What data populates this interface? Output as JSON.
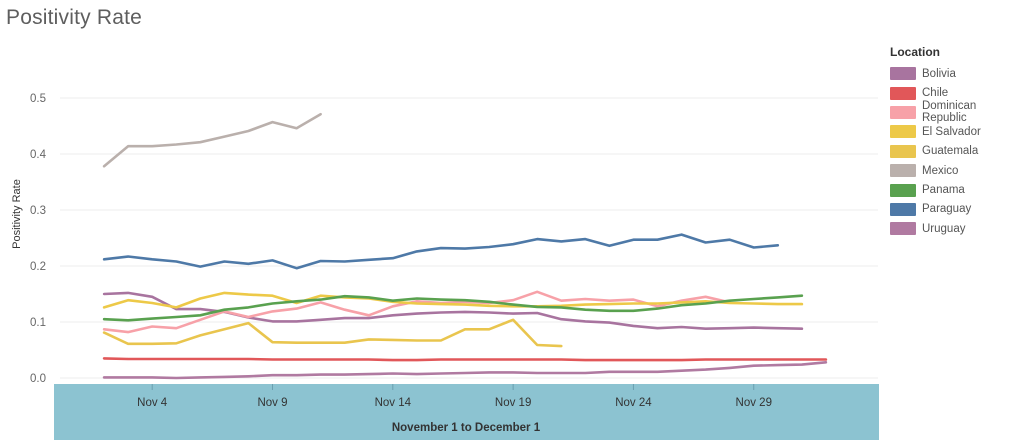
{
  "title": "Positivity Rate",
  "chart_data": {
    "type": "line",
    "ylabel": "Positivity Rate",
    "xlabel": "November 1 to December 1",
    "ylim": [
      0,
      0.5
    ],
    "yticks": [
      "0.0",
      "0.1",
      "0.2",
      "0.3",
      "0.4",
      "0.5"
    ],
    "xlim": [
      1,
      33
    ],
    "xticks": [
      {
        "label": "Nov 4",
        "day": 4
      },
      {
        "label": "Nov 9",
        "day": 9
      },
      {
        "label": "Nov 14",
        "day": 14
      },
      {
        "label": "Nov 19",
        "day": 19
      },
      {
        "label": "Nov 24",
        "day": 24
      },
      {
        "label": "Nov 29",
        "day": 29
      }
    ],
    "grid": true,
    "legend_title": "Location",
    "legend_position": "right",
    "series": [
      {
        "name": "Bolivia",
        "color": "#a8749f",
        "x": [
          2,
          3,
          4,
          5,
          6,
          7,
          8,
          9,
          10,
          11,
          12,
          13,
          14,
          15,
          16,
          17,
          18,
          19,
          20,
          21,
          22,
          23,
          24,
          25,
          26,
          27,
          28,
          29,
          30,
          31
        ],
        "values": [
          0.15,
          0.152,
          0.145,
          0.123,
          0.123,
          0.118,
          0.108,
          0.101,
          0.101,
          0.104,
          0.107,
          0.107,
          0.112,
          0.115,
          0.117,
          0.118,
          0.117,
          0.115,
          0.116,
          0.105,
          0.101,
          0.099,
          0.093,
          0.089,
          0.091,
          0.088,
          0.089,
          0.09,
          0.089,
          0.088
        ]
      },
      {
        "name": "Chile",
        "color": "#e15759",
        "x": [
          2,
          3,
          4,
          5,
          6,
          7,
          8,
          9,
          10,
          11,
          12,
          13,
          14,
          15,
          16,
          17,
          18,
          19,
          20,
          21,
          22,
          23,
          24,
          25,
          26,
          27,
          28,
          29,
          30,
          31,
          32
        ],
        "values": [
          0.035,
          0.034,
          0.034,
          0.034,
          0.034,
          0.034,
          0.034,
          0.033,
          0.033,
          0.033,
          0.033,
          0.033,
          0.032,
          0.032,
          0.033,
          0.033,
          0.033,
          0.033,
          0.033,
          0.033,
          0.032,
          0.032,
          0.032,
          0.032,
          0.032,
          0.033,
          0.033,
          0.033,
          0.033,
          0.033,
          0.033
        ]
      },
      {
        "name": "Dominican Republic",
        "color": "#f7a1a8",
        "x": [
          2,
          3,
          4,
          5,
          6,
          7,
          8,
          9,
          10,
          11,
          12,
          13,
          14,
          15,
          16,
          17,
          18,
          19,
          20,
          21,
          22,
          23,
          24,
          25,
          26,
          27,
          28
        ],
        "values": [
          0.087,
          0.082,
          0.092,
          0.089,
          0.104,
          0.119,
          0.109,
          0.119,
          0.124,
          0.135,
          0.122,
          0.112,
          0.128,
          0.137,
          0.134,
          0.136,
          0.134,
          0.139,
          0.154,
          0.138,
          0.141,
          0.138,
          0.14,
          0.128,
          0.138,
          0.145,
          0.135
        ]
      },
      {
        "name": "El Salvador",
        "color": "#edc948",
        "x": [
          2,
          3,
          4,
          5,
          6,
          7,
          8,
          9,
          10,
          11,
          12,
          13,
          14,
          15,
          16,
          17,
          18,
          19,
          20,
          21,
          22,
          23,
          24,
          25,
          26,
          27,
          28,
          29,
          30,
          31
        ],
        "values": [
          0.126,
          0.139,
          0.134,
          0.126,
          0.142,
          0.152,
          0.149,
          0.147,
          0.134,
          0.147,
          0.144,
          0.142,
          0.136,
          0.133,
          0.132,
          0.131,
          0.129,
          0.128,
          0.128,
          0.129,
          0.131,
          0.132,
          0.133,
          0.133,
          0.135,
          0.137,
          0.134,
          0.133,
          0.132,
          0.132
        ]
      },
      {
        "name": "Guatemala",
        "color": "#e9c54e",
        "x": [
          2,
          3,
          4,
          5,
          6,
          7,
          8,
          9,
          10,
          11,
          12,
          13,
          14,
          15,
          16,
          17,
          18,
          19,
          20,
          21
        ],
        "values": [
          0.081,
          0.061,
          0.061,
          0.062,
          0.076,
          0.087,
          0.098,
          0.064,
          0.063,
          0.063,
          0.063,
          0.069,
          0.068,
          0.067,
          0.067,
          0.087,
          0.087,
          0.104,
          0.059,
          0.057
        ]
      },
      {
        "name": "Mexico",
        "color": "#bab0ac",
        "x": [
          2,
          3,
          4,
          5,
          6,
          7,
          8,
          9,
          10,
          11
        ],
        "values": [
          0.378,
          0.414,
          0.414,
          0.417,
          0.421,
          0.431,
          0.441,
          0.457,
          0.446,
          0.471
        ]
      },
      {
        "name": "Panama",
        "color": "#59a14f",
        "x": [
          2,
          3,
          4,
          5,
          6,
          7,
          8,
          9,
          10,
          11,
          12,
          13,
          14,
          15,
          16,
          17,
          18,
          19,
          20,
          21,
          22,
          23,
          24,
          25,
          26,
          27,
          28,
          29,
          30,
          31
        ],
        "values": [
          0.105,
          0.103,
          0.106,
          0.109,
          0.112,
          0.122,
          0.126,
          0.133,
          0.137,
          0.14,
          0.146,
          0.144,
          0.138,
          0.142,
          0.14,
          0.139,
          0.136,
          0.131,
          0.127,
          0.126,
          0.122,
          0.12,
          0.12,
          0.124,
          0.13,
          0.133,
          0.138,
          0.141,
          0.144,
          0.147
        ]
      },
      {
        "name": "Paraguay",
        "color": "#4e79a7",
        "x": [
          2,
          3,
          4,
          5,
          6,
          7,
          8,
          9,
          10,
          11,
          12,
          13,
          14,
          15,
          16,
          17,
          18,
          19,
          20,
          21,
          22,
          23,
          24,
          25,
          26,
          27,
          28,
          29,
          30
        ],
        "values": [
          0.212,
          0.217,
          0.212,
          0.208,
          0.199,
          0.208,
          0.204,
          0.21,
          0.196,
          0.209,
          0.208,
          0.211,
          0.214,
          0.226,
          0.232,
          0.231,
          0.234,
          0.239,
          0.248,
          0.244,
          0.248,
          0.236,
          0.247,
          0.247,
          0.256,
          0.242,
          0.247,
          0.233,
          0.237
        ]
      },
      {
        "name": "Uruguay",
        "color": "#b07aa1",
        "x": [
          2,
          3,
          4,
          5,
          6,
          7,
          8,
          9,
          10,
          11,
          12,
          13,
          14,
          15,
          16,
          17,
          18,
          19,
          20,
          21,
          22,
          23,
          24,
          25,
          26,
          27,
          28,
          29,
          30,
          31,
          32
        ],
        "values": [
          0.001,
          0.001,
          0.001,
          0.0,
          0.001,
          0.002,
          0.003,
          0.005,
          0.005,
          0.006,
          0.006,
          0.007,
          0.008,
          0.007,
          0.008,
          0.009,
          0.01,
          0.01,
          0.009,
          0.009,
          0.009,
          0.011,
          0.011,
          0.011,
          0.013,
          0.015,
          0.018,
          0.022,
          0.023,
          0.024,
          0.028
        ]
      }
    ]
  }
}
